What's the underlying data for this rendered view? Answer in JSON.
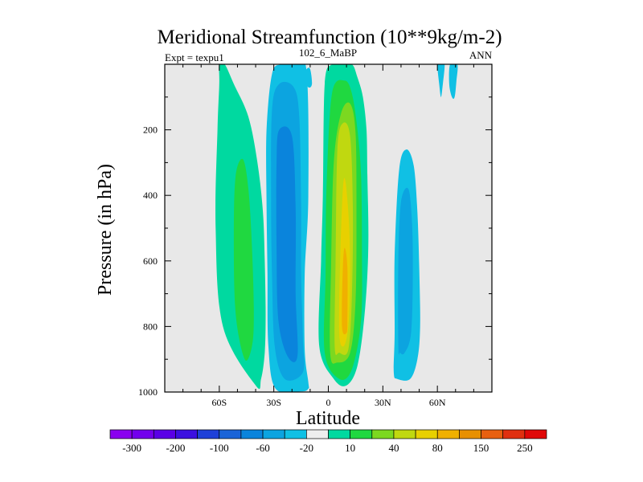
{
  "chart_data": {
    "type": "heatmap",
    "title": "Meridional Streamfunction (10**9kg/m-2)",
    "left_label": "Expt = texpu1",
    "center_label": "102_6_MaBP",
    "right_label": "ANN",
    "xlabel": "Latitude",
    "ylabel": "Pressure (in hPa)",
    "xlim": [
      -90,
      90
    ],
    "ylim": [
      1000,
      0
    ],
    "x_ticks": [
      {
        "value": -60,
        "label": "60S"
      },
      {
        "value": -30,
        "label": "30S"
      },
      {
        "value": 0,
        "label": "0"
      },
      {
        "value": 30,
        "label": "30N"
      },
      {
        "value": 60,
        "label": "60N"
      }
    ],
    "y_ticks": [
      {
        "value": 200,
        "label": "200"
      },
      {
        "value": 400,
        "label": "400"
      },
      {
        "value": 600,
        "label": "600"
      },
      {
        "value": 800,
        "label": "800"
      },
      {
        "value": 1000,
        "label": "1000"
      }
    ],
    "colorbar": {
      "colors": [
        "#8a00ef",
        "#7300ec",
        "#5a00e6",
        "#3c10e0",
        "#1e40d8",
        "#1a64d8",
        "#0a84dc",
        "#0ca4e0",
        "#10c0e4",
        "#eeeeee",
        "#00d9a0",
        "#20d840",
        "#7cd820",
        "#c0d810",
        "#e8d000",
        "#f0b000",
        "#e89000",
        "#e86010",
        "#e03010",
        "#e00808"
      ],
      "labels": [
        "-300",
        "-200",
        "-100",
        "-60",
        "-20",
        "10",
        "40",
        "80",
        "150",
        "250"
      ],
      "label_positions": [
        0.5,
        2.5,
        4.5,
        6.5,
        8.5,
        10.5,
        12.5,
        14.5,
        16.5,
        18.5
      ]
    },
    "background_color": "#e8e8e8",
    "contours": [
      {
        "name": "sh-outer-cell",
        "color": "#00d9a0",
        "lat": [
          -40,
          -37,
          -35,
          -34.5,
          -35,
          -36,
          -39,
          -44,
          -52,
          -57,
          -60,
          -60,
          -61,
          -62,
          -58
        ],
        "p": [
          980,
          960,
          880,
          760,
          600,
          450,
          300,
          160,
          60,
          0,
          0,
          60,
          200,
          500,
          800
        ]
      },
      {
        "name": "sh-outer-core",
        "color": "#20d840",
        "lat": [
          -46,
          -42,
          -41,
          -42,
          -44,
          -47,
          -51,
          -52,
          -51
        ],
        "p": [
          900,
          860,
          760,
          560,
          380,
          290,
          340,
          520,
          760
        ]
      },
      {
        "name": "sh-main-outer",
        "color": "#10c0e4",
        "lat": [
          -11,
          -11,
          -13,
          -13,
          -11,
          -12,
          -19,
          -26,
          -31,
          -34,
          -34,
          -33.5,
          -33,
          -29,
          -15
        ],
        "p": [
          990,
          970,
          870,
          640,
          400,
          20,
          0,
          0,
          30,
          200,
          420,
          640,
          860,
          990,
          998
        ]
      },
      {
        "name": "sh-main-middle",
        "color": "#0ca4e0",
        "lat": [
          -14,
          -14,
          -15,
          -15,
          -16,
          -19,
          -27,
          -31,
          -31.5,
          -31,
          -29.5,
          -24
        ],
        "p": [
          940,
          840,
          640,
          420,
          160,
          70,
          60,
          140,
          420,
          640,
          860,
          960
        ]
      },
      {
        "name": "sh-main-inner",
        "color": "#0a84dc",
        "lat": [
          -17,
          -18,
          -18,
          -20,
          -27,
          -28.5,
          -28.5,
          -27.5,
          -22.5
        ],
        "p": [
          890,
          700,
          440,
          220,
          200,
          300,
          560,
          780,
          890
        ]
      },
      {
        "name": "nh-hadley-l1",
        "color": "#00d9a0",
        "lat": [
          -5,
          -4,
          -3,
          -2,
          2,
          7,
          13,
          16,
          19,
          21,
          21.5,
          22,
          20,
          16,
          10,
          3
        ],
        "p": [
          860,
          600,
          400,
          60,
          0,
          0,
          0,
          40,
          100,
          200,
          340,
          560,
          760,
          920,
          980,
          960
        ]
      },
      {
        "name": "nh-hadley-l2",
        "color": "#20d840",
        "lat": [
          -2,
          -1.5,
          -1,
          2,
          9,
          13,
          16,
          18,
          18.5,
          18,
          13,
          6
        ],
        "p": [
          880,
          640,
          380,
          90,
          50,
          90,
          200,
          340,
          560,
          780,
          930,
          960
        ]
      },
      {
        "name": "nh-hadley-l3",
        "color": "#7cd820",
        "lat": [
          1,
          1.5,
          3,
          7,
          12,
          15,
          15.5,
          15,
          12,
          5
        ],
        "p": [
          880,
          620,
          300,
          150,
          120,
          210,
          460,
          720,
          880,
          910
        ]
      },
      {
        "name": "nh-hadley-l4",
        "color": "#c0d810",
        "lat": [
          3.5,
          4,
          5,
          8,
          12,
          13.5,
          13,
          11,
          6
        ],
        "p": [
          860,
          600,
          260,
          180,
          220,
          440,
          700,
          870,
          880
        ]
      },
      {
        "name": "nh-hadley-l5",
        "color": "#e8d000",
        "lat": [
          6,
          6.5,
          8,
          9.5,
          11.5,
          12,
          11,
          8.5
        ],
        "p": [
          820,
          600,
          380,
          360,
          500,
          660,
          800,
          860
        ]
      },
      {
        "name": "nh-hadley-l6",
        "color": "#f0b000",
        "lat": [
          7.5,
          8,
          9,
          10.5,
          10.5,
          10
        ],
        "p": [
          800,
          620,
          560,
          620,
          780,
          820
        ]
      },
      {
        "name": "nh-ferrel",
        "color": "#10c0e4",
        "lat": [
          36,
          36.5,
          36.5,
          39,
          43,
          47,
          49,
          50,
          50.5,
          49,
          45,
          38
        ],
        "p": [
          940,
          820,
          580,
          320,
          260,
          310,
          450,
          620,
          800,
          900,
          960,
          960
        ]
      },
      {
        "name": "nh-ferrel-core",
        "color": "#0ca4e0",
        "lat": [
          38.5,
          38.5,
          40,
          44,
          46,
          46.5,
          45.5,
          42,
          39.5
        ],
        "p": [
          860,
          600,
          420,
          380,
          480,
          640,
          820,
          880,
          880
        ]
      },
      {
        "name": "nh-polar-1",
        "color": "#10c0e4",
        "lat": [
          60,
          61,
          62,
          63,
          64,
          62
        ],
        "p": [
          0,
          60,
          100,
          60,
          0,
          0
        ]
      },
      {
        "name": "nh-polar-2",
        "color": "#10c0e4",
        "lat": [
          67,
          66.5,
          68,
          69.5,
          70.5,
          71
        ],
        "p": [
          0,
          60,
          100,
          100,
          50,
          0
        ]
      },
      {
        "name": "upper-blob",
        "color": "#10c0e4",
        "lat": [
          -14,
          -12,
          -10,
          -9,
          -11
        ],
        "p": [
          40,
          15,
          15,
          60,
          70
        ]
      }
    ]
  }
}
